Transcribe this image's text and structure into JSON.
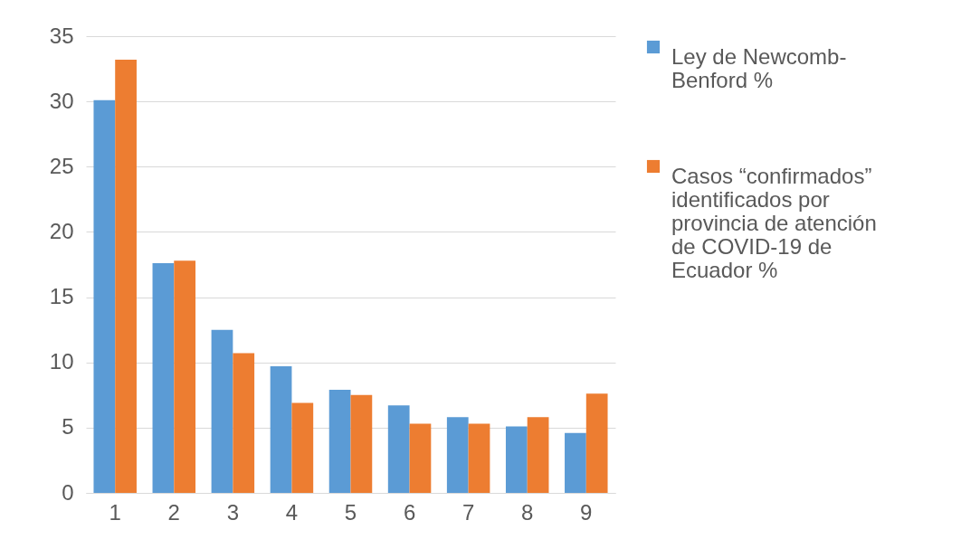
{
  "chart_data": {
    "type": "bar",
    "categories": [
      "1",
      "2",
      "3",
      "4",
      "5",
      "6",
      "7",
      "8",
      "9"
    ],
    "series": [
      {
        "name": "Ley de Newcomb-Benford %",
        "color": "#5b9bd5",
        "values": [
          30.1,
          17.6,
          12.5,
          9.7,
          7.9,
          6.7,
          5.8,
          5.1,
          4.6
        ]
      },
      {
        "name": "Casos “confirmados” identificados por provincia de atención de COVID-19 de Ecuador %",
        "color": "#ed7d31",
        "values": [
          33.2,
          17.8,
          10.7,
          6.9,
          7.5,
          5.3,
          5.3,
          5.8,
          7.6
        ]
      }
    ],
    "ylim": [
      0,
      35
    ],
    "yticks": [
      0,
      5,
      10,
      15,
      20,
      25,
      30,
      35
    ],
    "grid": "y",
    "legend": "right"
  }
}
